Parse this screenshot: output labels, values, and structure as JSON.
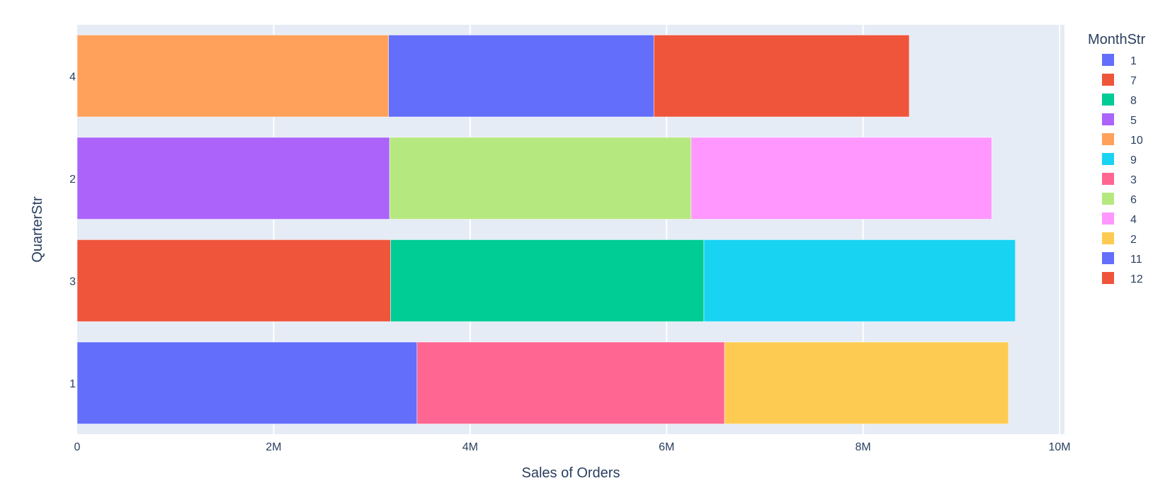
{
  "chart_data": {
    "type": "bar",
    "orientation": "horizontal",
    "barmode": "stack",
    "xlabel": "Sales of Orders",
    "ylabel": "QuarterStr",
    "xlim": [
      0,
      10050000
    ],
    "x_ticks": [
      {
        "value": 0,
        "label": "0"
      },
      {
        "value": 2000000,
        "label": "2M"
      },
      {
        "value": 4000000,
        "label": "4M"
      },
      {
        "value": 6000000,
        "label": "6M"
      },
      {
        "value": 8000000,
        "label": "8M"
      },
      {
        "value": 10000000,
        "label": "10M"
      }
    ],
    "categories": [
      "1",
      "3",
      "2",
      "4"
    ],
    "grid": true,
    "legend_title": "MonthStr",
    "legend_position": "right",
    "plot_background": "#E5ECF6",
    "series": [
      {
        "name": "1",
        "color": "#636EFA",
        "category": "1",
        "value": 3460000
      },
      {
        "name": "7",
        "color": "#EF553B",
        "category": "3",
        "value": 3190000
      },
      {
        "name": "8",
        "color": "#00CC96",
        "category": "3",
        "value": 3190000
      },
      {
        "name": "5",
        "color": "#AB63FA",
        "category": "2",
        "value": 3180000
      },
      {
        "name": "10",
        "color": "#FFA15A",
        "category": "4",
        "value": 3170000
      },
      {
        "name": "9",
        "color": "#19D3F3",
        "category": "3",
        "value": 3170000
      },
      {
        "name": "3",
        "color": "#FF6692",
        "category": "1",
        "value": 3130000
      },
      {
        "name": "6",
        "color": "#B6E880",
        "category": "2",
        "value": 3070000
      },
      {
        "name": "4",
        "color": "#FF97FF",
        "category": "2",
        "value": 3060000
      },
      {
        "name": "2",
        "color": "#FECB52",
        "category": "1",
        "value": 2890000
      },
      {
        "name": "11",
        "color": "#636EFA",
        "category": "4",
        "value": 2700000
      },
      {
        "name": "12",
        "color": "#EF553B",
        "category": "4",
        "value": 2600000
      }
    ]
  }
}
